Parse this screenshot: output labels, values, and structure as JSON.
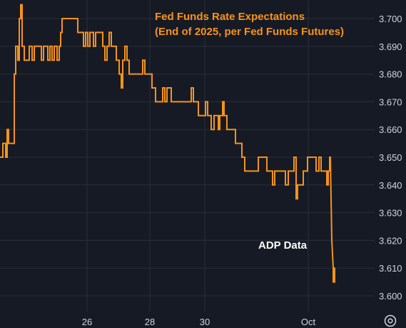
{
  "chart_data": {
    "type": "line",
    "title_lines": [
      "Fed Funds Rate Expectations",
      "(End of 2025, per Fed Funds Futures)"
    ],
    "annotation": "ADP Data",
    "ylim": [
      3.595,
      3.705
    ],
    "y_ticks": [
      "3.600",
      "3.610",
      "3.620",
      "3.630",
      "3.640",
      "3.650",
      "3.660",
      "3.670",
      "3.680",
      "3.690",
      "3.700"
    ],
    "x_ticks": [
      {
        "label": "26",
        "t": 122
      },
      {
        "label": "28",
        "t": 210
      },
      {
        "label": "30",
        "t": 287
      },
      {
        "label": "Oct",
        "t": 432
      }
    ],
    "xlim": [
      0,
      540
    ],
    "grid": true,
    "line_color": "#f7931a",
    "series": [
      {
        "points": [
          [
            0,
            3.65
          ],
          [
            4,
            3.65
          ],
          [
            4,
            3.655
          ],
          [
            8,
            3.655
          ],
          [
            8,
            3.65
          ],
          [
            10,
            3.65
          ],
          [
            10,
            3.66
          ],
          [
            12,
            3.66
          ],
          [
            12,
            3.655
          ],
          [
            20,
            3.655
          ],
          [
            20,
            3.68
          ],
          [
            22,
            3.68
          ],
          [
            22,
            3.69
          ],
          [
            25,
            3.69
          ],
          [
            25,
            3.685
          ],
          [
            27,
            3.685
          ],
          [
            27,
            3.7
          ],
          [
            29,
            3.7
          ],
          [
            29,
            3.705
          ],
          [
            31,
            3.705
          ],
          [
            31,
            3.69
          ],
          [
            34,
            3.69
          ],
          [
            34,
            3.685
          ],
          [
            41,
            3.685
          ],
          [
            41,
            3.69
          ],
          [
            45,
            3.69
          ],
          [
            45,
            3.685
          ],
          [
            48,
            3.685
          ],
          [
            48,
            3.69
          ],
          [
            58,
            3.69
          ],
          [
            58,
            3.685
          ],
          [
            61,
            3.685
          ],
          [
            61,
            3.69
          ],
          [
            67,
            3.69
          ],
          [
            67,
            3.685
          ],
          [
            70,
            3.685
          ],
          [
            70,
            3.69
          ],
          [
            73,
            3.69
          ],
          [
            73,
            3.685
          ],
          [
            76,
            3.685
          ],
          [
            76,
            3.69
          ],
          [
            80,
            3.69
          ],
          [
            80,
            3.685
          ],
          [
            83,
            3.685
          ],
          [
            83,
            3.69
          ],
          [
            85,
            3.69
          ],
          [
            85,
            3.695
          ],
          [
            87,
            3.695
          ],
          [
            87,
            3.7
          ],
          [
            109,
            3.7
          ],
          [
            109,
            3.695
          ],
          [
            117,
            3.695
          ],
          [
            117,
            3.69
          ],
          [
            120,
            3.69
          ],
          [
            120,
            3.695
          ],
          [
            123,
            3.695
          ],
          [
            123,
            3.69
          ],
          [
            126,
            3.69
          ],
          [
            126,
            3.695
          ],
          [
            131,
            3.695
          ],
          [
            131,
            3.69
          ],
          [
            134,
            3.69
          ],
          [
            134,
            3.695
          ],
          [
            144,
            3.695
          ],
          [
            144,
            3.69
          ],
          [
            147,
            3.69
          ],
          [
            147,
            3.685
          ],
          [
            150,
            3.685
          ],
          [
            150,
            3.69
          ],
          [
            153,
            3.69
          ],
          [
            153,
            3.695
          ],
          [
            156,
            3.695
          ],
          [
            156,
            3.69
          ],
          [
            163,
            3.69
          ],
          [
            163,
            3.685
          ],
          [
            167,
            3.685
          ],
          [
            167,
            3.68
          ],
          [
            170,
            3.68
          ],
          [
            170,
            3.675
          ],
          [
            172,
            3.675
          ],
          [
            172,
            3.685
          ],
          [
            175,
            3.685
          ],
          [
            175,
            3.69
          ],
          [
            178,
            3.69
          ],
          [
            178,
            3.685
          ],
          [
            181,
            3.685
          ],
          [
            181,
            3.68
          ],
          [
            200,
            3.68
          ],
          [
            200,
            3.685
          ],
          [
            203,
            3.685
          ],
          [
            203,
            3.68
          ],
          [
            213,
            3.68
          ],
          [
            213,
            3.675
          ],
          [
            218,
            3.675
          ],
          [
            218,
            3.67
          ],
          [
            228,
            3.67
          ],
          [
            228,
            3.675
          ],
          [
            231,
            3.675
          ],
          [
            231,
            3.67
          ],
          [
            234,
            3.67
          ],
          [
            234,
            3.675
          ],
          [
            240,
            3.675
          ],
          [
            240,
            3.67
          ],
          [
            268,
            3.67
          ],
          [
            268,
            3.675
          ],
          [
            271,
            3.675
          ],
          [
            271,
            3.67
          ],
          [
            278,
            3.67
          ],
          [
            278,
            3.665
          ],
          [
            288,
            3.665
          ],
          [
            288,
            3.67
          ],
          [
            291,
            3.67
          ],
          [
            291,
            3.665
          ],
          [
            296,
            3.665
          ],
          [
            296,
            3.66
          ],
          [
            300,
            3.66
          ],
          [
            300,
            3.665
          ],
          [
            306,
            3.665
          ],
          [
            306,
            3.66
          ],
          [
            308,
            3.66
          ],
          [
            308,
            3.665
          ],
          [
            312,
            3.665
          ],
          [
            312,
            3.67
          ],
          [
            314,
            3.67
          ],
          [
            314,
            3.665
          ],
          [
            318,
            3.665
          ],
          [
            318,
            3.66
          ],
          [
            330,
            3.66
          ],
          [
            330,
            3.655
          ],
          [
            339,
            3.655
          ],
          [
            339,
            3.65
          ],
          [
            343,
            3.65
          ],
          [
            343,
            3.645
          ],
          [
            362,
            3.645
          ],
          [
            362,
            3.65
          ],
          [
            374,
            3.65
          ],
          [
            374,
            3.645
          ],
          [
            382,
            3.645
          ],
          [
            382,
            3.64
          ],
          [
            385,
            3.64
          ],
          [
            385,
            3.645
          ],
          [
            400,
            3.645
          ],
          [
            400,
            3.64
          ],
          [
            404,
            3.64
          ],
          [
            404,
            3.645
          ],
          [
            412,
            3.645
          ],
          [
            412,
            3.65
          ],
          [
            415,
            3.65
          ],
          [
            415,
            3.635
          ],
          [
            417,
            3.635
          ],
          [
            417,
            3.64
          ],
          [
            425,
            3.64
          ],
          [
            425,
            3.645
          ],
          [
            431,
            3.645
          ],
          [
            431,
            3.65
          ],
          [
            443,
            3.65
          ],
          [
            443,
            3.645
          ],
          [
            447,
            3.645
          ],
          [
            447,
            3.65
          ],
          [
            450,
            3.65
          ],
          [
            450,
            3.645
          ],
          [
            458,
            3.645
          ],
          [
            458,
            3.64
          ],
          [
            460,
            3.64
          ],
          [
            460,
            3.645
          ],
          [
            462,
            3.645
          ],
          [
            462,
            3.65
          ],
          [
            463,
            3.65
          ],
          [
            465,
            3.62
          ],
          [
            467,
            3.61
          ],
          [
            467,
            3.605
          ],
          [
            469,
            3.605
          ],
          [
            469,
            3.61
          ],
          [
            470,
            3.61
          ]
        ]
      }
    ]
  }
}
